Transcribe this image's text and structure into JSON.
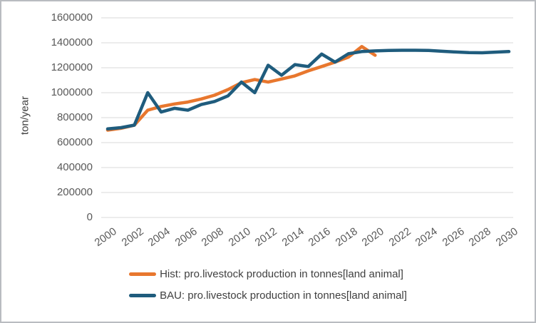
{
  "chart_data": {
    "type": "line",
    "title": "",
    "xlabel": "",
    "ylabel": "ton/year",
    "ylim": [
      0,
      1600000
    ],
    "ytick_step": 200000,
    "ytick_labels": [
      "0",
      "200000",
      "400000",
      "600000",
      "800000",
      "1000000",
      "1200000",
      "1400000",
      "1600000"
    ],
    "xlim": [
      2000,
      2030
    ],
    "xtick_years": [
      2000,
      2002,
      2004,
      2006,
      2008,
      2010,
      2012,
      2014,
      2016,
      2018,
      2020,
      2022,
      2024,
      2026,
      2028,
      2030
    ],
    "xtick_labels": [
      "2000",
      "2002",
      "2004",
      "2006",
      "2008",
      "2010",
      "2012",
      "2014",
      "2016",
      "2018",
      "2020",
      "2022",
      "2024",
      "2026",
      "2028",
      "2030"
    ],
    "grid": "horizontal",
    "gridline_color": "#d9d9d9",
    "axis_text_color": "#595959",
    "legend_position": "bottom",
    "series": [
      {
        "name": "Hist: pro.livestock production in tonnes[land animal]",
        "color": "#e8772e",
        "x_start": 2000,
        "x": [
          2000,
          2001,
          2002,
          2003,
          2004,
          2005,
          2006,
          2007,
          2008,
          2009,
          2010,
          2011,
          2012,
          2013,
          2014,
          2015,
          2016,
          2017,
          2018,
          2019,
          2020
        ],
        "values": [
          700000,
          715000,
          740000,
          860000,
          890000,
          910000,
          925000,
          950000,
          980000,
          1025000,
          1080000,
          1105000,
          1085000,
          1110000,
          1135000,
          1175000,
          1210000,
          1245000,
          1285000,
          1370000,
          1300000
        ]
      },
      {
        "name": "BAU: pro.livestock production in tonnes[land animal]",
        "color": "#1f5c7d",
        "x_start": 2000,
        "x": [
          2000,
          2001,
          2002,
          2003,
          2004,
          2005,
          2006,
          2007,
          2008,
          2009,
          2010,
          2011,
          2012,
          2013,
          2014,
          2015,
          2016,
          2017,
          2018,
          2019,
          2020,
          2021,
          2022,
          2023,
          2024,
          2025,
          2026,
          2027,
          2028,
          2029,
          2030
        ],
        "values": [
          710000,
          720000,
          740000,
          1000000,
          845000,
          875000,
          860000,
          905000,
          930000,
          975000,
          1085000,
          1000000,
          1220000,
          1140000,
          1225000,
          1210000,
          1310000,
          1245000,
          1312000,
          1330000,
          1335000,
          1338000,
          1340000,
          1340000,
          1338000,
          1332000,
          1326000,
          1321000,
          1320000,
          1325000,
          1330000
        ]
      }
    ]
  }
}
